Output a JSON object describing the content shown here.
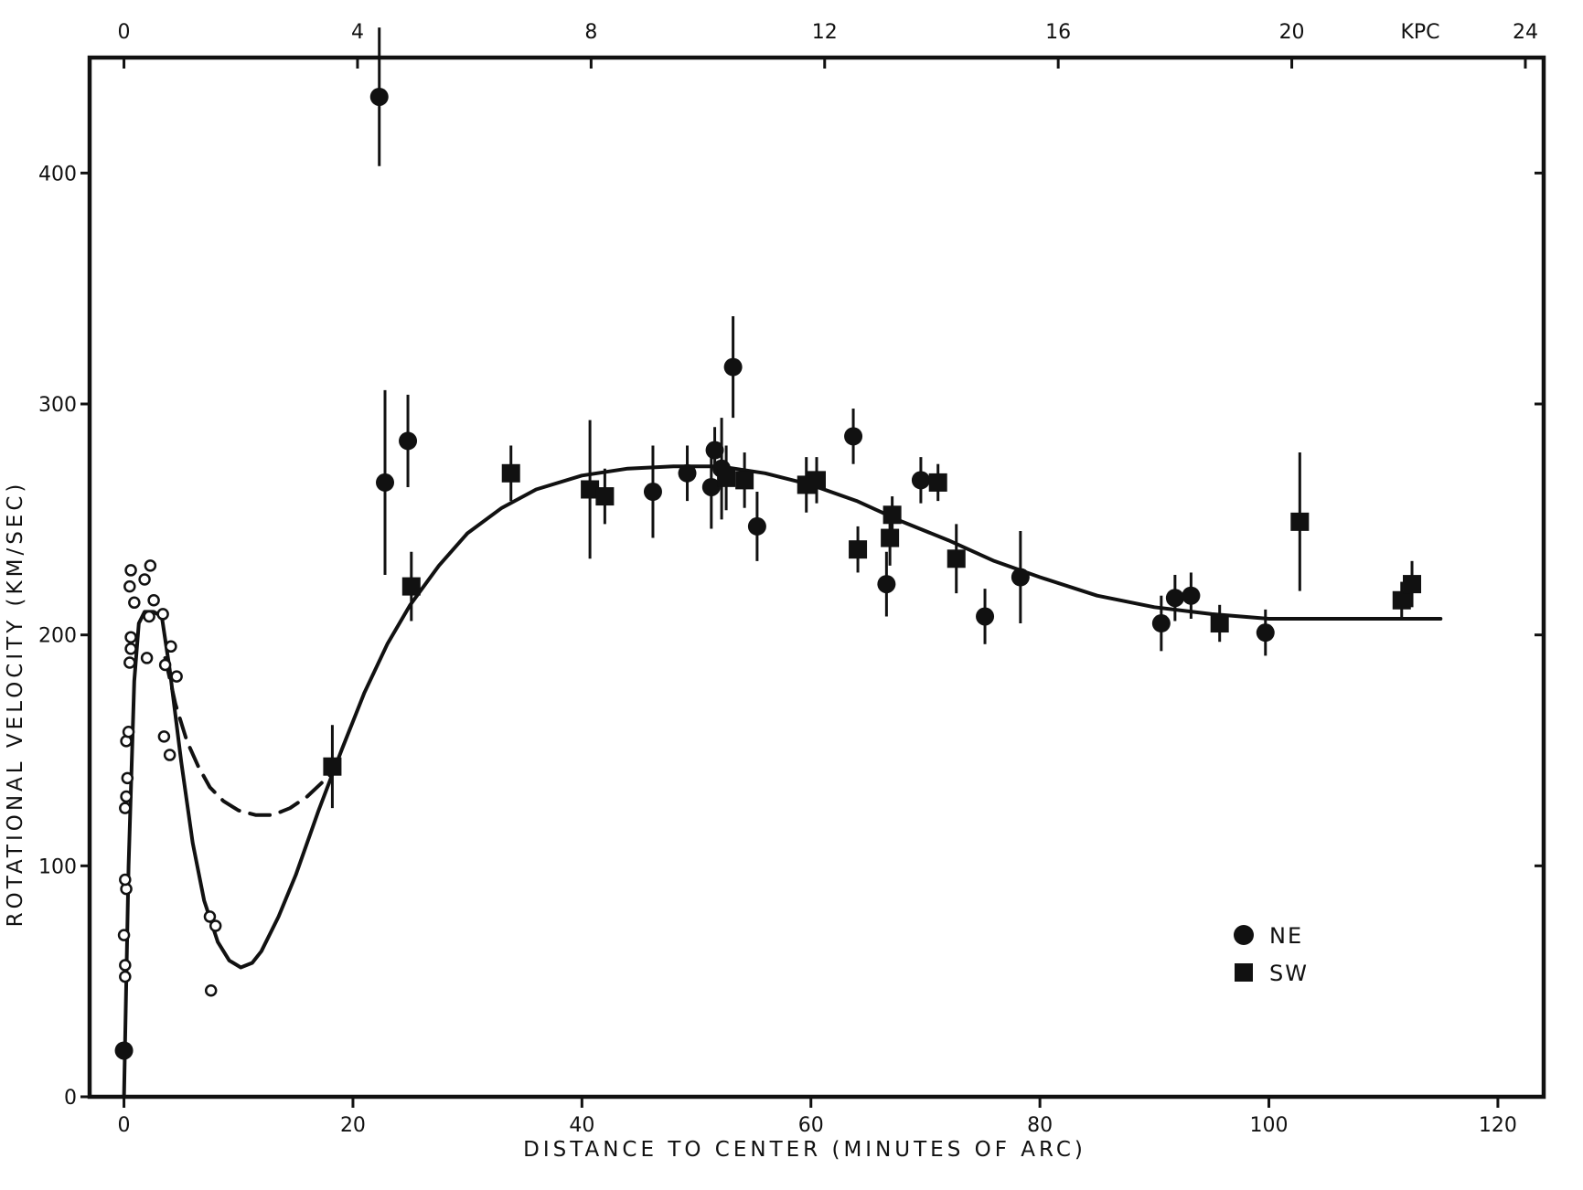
{
  "chart_data": {
    "type": "scatter",
    "title": "",
    "xlabel": "DISTANCE TO CENTER (MINUTES OF ARC)",
    "ylabel": "ROTATIONAL VELOCITY (KM/SEC)",
    "xlim": [
      -3,
      124
    ],
    "ylim": [
      0,
      450
    ],
    "x_ticks": [
      0,
      20,
      40,
      60,
      80,
      100,
      120
    ],
    "y_ticks": [
      0,
      100,
      200,
      300,
      400
    ],
    "top_axis": {
      "unit_label": "KPC",
      "tick_labels": [
        "0",
        "4",
        "8",
        "12",
        "16",
        "20",
        "24"
      ],
      "tick_positions_arcmin": [
        0,
        20.4,
        40.8,
        61.2,
        81.6,
        102,
        122.4
      ]
    },
    "grid": false,
    "legend": {
      "position": "bottom-right",
      "entries": [
        {
          "label": "NE",
          "marker": "filled-circle"
        },
        {
          "label": "SW",
          "marker": "filled-square"
        }
      ]
    },
    "series": [
      {
        "name": "NE",
        "marker": "filled-circle",
        "points": [
          {
            "x": 0,
            "y": 20,
            "err": 0
          },
          {
            "x": 22.3,
            "y": 433,
            "err": 30
          },
          {
            "x": 22.8,
            "y": 266,
            "err": 40
          },
          {
            "x": 24.8,
            "y": 284,
            "err": 20
          },
          {
            "x": 46.2,
            "y": 262,
            "err": 20
          },
          {
            "x": 49.2,
            "y": 270,
            "err": 12
          },
          {
            "x": 51.3,
            "y": 264,
            "err": 18
          },
          {
            "x": 51.6,
            "y": 280,
            "err": 10
          },
          {
            "x": 52.2,
            "y": 272,
            "err": 22
          },
          {
            "x": 53.2,
            "y": 316,
            "err": 22
          },
          {
            "x": 55.3,
            "y": 247,
            "err": 15
          },
          {
            "x": 63.7,
            "y": 286,
            "err": 12
          },
          {
            "x": 66.6,
            "y": 222,
            "err": 14
          },
          {
            "x": 69.6,
            "y": 267,
            "err": 10
          },
          {
            "x": 75.2,
            "y": 208,
            "err": 12
          },
          {
            "x": 78.3,
            "y": 225,
            "err": 20
          },
          {
            "x": 90.6,
            "y": 205,
            "err": 12
          },
          {
            "x": 91.8,
            "y": 216,
            "err": 10
          },
          {
            "x": 93.2,
            "y": 217,
            "err": 10
          },
          {
            "x": 99.7,
            "y": 201,
            "err": 10
          }
        ]
      },
      {
        "name": "SW",
        "marker": "filled-square",
        "points": [
          {
            "x": 18.2,
            "y": 143,
            "err": 18
          },
          {
            "x": 25.1,
            "y": 221,
            "err": 15
          },
          {
            "x": 33.8,
            "y": 270,
            "err": 12
          },
          {
            "x": 40.7,
            "y": 263,
            "err": 30
          },
          {
            "x": 42.0,
            "y": 260,
            "err": 12
          },
          {
            "x": 52.6,
            "y": 268,
            "err": 14
          },
          {
            "x": 54.2,
            "y": 267,
            "err": 12
          },
          {
            "x": 59.6,
            "y": 265,
            "err": 12
          },
          {
            "x": 60.5,
            "y": 267,
            "err": 10
          },
          {
            "x": 64.1,
            "y": 237,
            "err": 10
          },
          {
            "x": 66.9,
            "y": 242,
            "err": 12
          },
          {
            "x": 67.1,
            "y": 252,
            "err": 8
          },
          {
            "x": 71.1,
            "y": 266,
            "err": 8
          },
          {
            "x": 72.7,
            "y": 233,
            "err": 15
          },
          {
            "x": 95.7,
            "y": 205,
            "err": 8
          },
          {
            "x": 102.7,
            "y": 249,
            "err": 30
          },
          {
            "x": 111.6,
            "y": 215,
            "err": 8
          },
          {
            "x": 112.5,
            "y": 222,
            "err": 10
          }
        ]
      },
      {
        "marker": "open-circle",
        "points": [
          {
            "x": 0.1,
            "y": 52
          },
          {
            "x": 0.1,
            "y": 57
          },
          {
            "x": 0.0,
            "y": 70
          },
          {
            "x": 0.2,
            "y": 90
          },
          {
            "x": 0.1,
            "y": 94
          },
          {
            "x": 0.1,
            "y": 125
          },
          {
            "x": 0.2,
            "y": 130
          },
          {
            "x": 0.3,
            "y": 138
          },
          {
            "x": 0.2,
            "y": 154
          },
          {
            "x": 0.4,
            "y": 158
          },
          {
            "x": 0.5,
            "y": 188
          },
          {
            "x": 0.6,
            "y": 194
          },
          {
            "x": 0.6,
            "y": 199
          },
          {
            "x": 0.5,
            "y": 221
          },
          {
            "x": 0.6,
            "y": 228
          },
          {
            "x": 0.9,
            "y": 214
          },
          {
            "x": 1.8,
            "y": 224
          },
          {
            "x": 2.3,
            "y": 230
          },
          {
            "x": 2.6,
            "y": 215
          },
          {
            "x": 2.2,
            "y": 208
          },
          {
            "x": 2.0,
            "y": 190
          },
          {
            "x": 3.4,
            "y": 209
          },
          {
            "x": 3.6,
            "y": 187
          },
          {
            "x": 3.5,
            "y": 156
          },
          {
            "x": 4.0,
            "y": 148
          },
          {
            "x": 4.1,
            "y": 195
          },
          {
            "x": 4.6,
            "y": 182
          },
          {
            "x": 7.5,
            "y": 78
          },
          {
            "x": 8.0,
            "y": 74
          },
          {
            "x": 7.6,
            "y": 46
          }
        ]
      }
    ],
    "curves": [
      {
        "style": "solid",
        "points": [
          [
            0,
            0
          ],
          [
            0.4,
            100
          ],
          [
            0.9,
            180
          ],
          [
            1.3,
            205
          ],
          [
            1.8,
            210
          ],
          [
            2.6,
            210
          ],
          [
            3.3,
            208
          ],
          [
            4.0,
            185
          ],
          [
            5.0,
            145
          ],
          [
            6.0,
            110
          ],
          [
            7.0,
            85
          ],
          [
            8.2,
            67
          ],
          [
            9.2,
            59
          ],
          [
            10.2,
            56
          ],
          [
            11.2,
            58
          ],
          [
            12.0,
            63
          ],
          [
            13.5,
            78
          ],
          [
            15.0,
            96
          ],
          [
            17.0,
            124
          ],
          [
            19.0,
            150
          ],
          [
            21.0,
            175
          ],
          [
            23.0,
            196
          ],
          [
            25.0,
            213
          ],
          [
            27.5,
            230
          ],
          [
            30.0,
            244
          ],
          [
            33.0,
            255
          ],
          [
            36.0,
            263
          ],
          [
            40.0,
            269
          ],
          [
            44.0,
            272
          ],
          [
            48.0,
            273
          ],
          [
            52.0,
            273
          ],
          [
            56.0,
            270
          ],
          [
            60.0,
            265
          ],
          [
            64.0,
            258
          ],
          [
            68.0,
            249
          ],
          [
            72.0,
            241
          ],
          [
            76.0,
            232
          ],
          [
            80.0,
            225
          ],
          [
            85.0,
            217
          ],
          [
            90.0,
            212
          ],
          [
            95.0,
            209
          ],
          [
            100.0,
            207
          ],
          [
            105.0,
            207
          ],
          [
            110.0,
            207
          ],
          [
            115.0,
            207
          ]
        ]
      },
      {
        "style": "dashed",
        "points": [
          [
            3.6,
            190
          ],
          [
            4.5,
            170
          ],
          [
            5.5,
            154
          ],
          [
            6.5,
            143
          ],
          [
            7.5,
            134
          ],
          [
            8.7,
            128
          ],
          [
            10.0,
            124
          ],
          [
            11.5,
            122
          ],
          [
            13.0,
            122
          ],
          [
            14.5,
            125
          ],
          [
            16.0,
            130
          ],
          [
            17.5,
            137
          ],
          [
            18.8,
            143
          ]
        ]
      }
    ]
  }
}
